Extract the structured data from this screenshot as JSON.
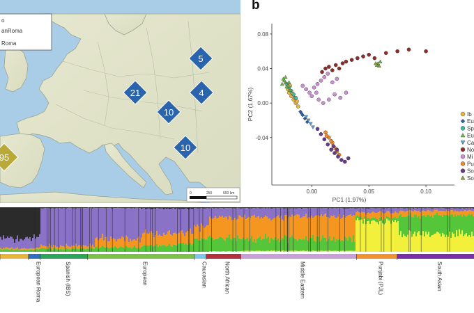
{
  "panel_b_label": "b",
  "map": {
    "legend": {
      "items": [
        "o",
        "anRoma",
        "Roma"
      ]
    },
    "markers": [
      {
        "label": "5",
        "color": "#2a64ad"
      },
      {
        "label": "21",
        "color": "#2a64ad"
      },
      {
        "label": "4",
        "color": "#2a64ad"
      },
      {
        "label": "10",
        "color": "#2a64ad"
      },
      {
        "label": "10",
        "color": "#2a64ad"
      },
      {
        "label": "95",
        "color": "#b9a938"
      }
    ],
    "scale": {
      "labels": [
        "0",
        "250",
        "500 km"
      ]
    }
  },
  "chart_data": {
    "type": "scatter",
    "xlabel": "PC1 (1.97%)",
    "ylabel": "PC2 (1.67%)",
    "xlim": [
      -0.035,
      0.125
    ],
    "ylim": [
      -0.095,
      0.092
    ],
    "xticks": [
      "0.00",
      "0.05",
      "0.10"
    ],
    "xtick_values": [
      0.0,
      0.05,
      0.1
    ],
    "yticks": [
      "0.08",
      "0.04",
      "0.00",
      "-0.04"
    ],
    "ytick_values": [
      0.08,
      0.04,
      0.0,
      -0.04
    ],
    "grid": false,
    "legend_position": "right (cropped)",
    "legend": [
      {
        "label": "Ib",
        "color": "#e8b43a",
        "marker": "circle"
      },
      {
        "label": "Eu",
        "color": "#2f5fa6",
        "marker": "diamond"
      },
      {
        "label": "Sp",
        "color": "#4db3a0",
        "marker": "circle"
      },
      {
        "label": "Eu",
        "color": "#6fb84a",
        "marker": "triangle"
      },
      {
        "label": "Ca",
        "color": "#5aa0d6",
        "marker": "triangle-down"
      },
      {
        "label": "No",
        "color": "#8b2d2a",
        "marker": "circle"
      },
      {
        "label": "Mi",
        "color": "#c98fd0",
        "marker": "circle"
      },
      {
        "label": "Pu",
        "color": "#e88a2a",
        "marker": "circle"
      },
      {
        "label": "So",
        "color": "#6a3a8a",
        "marker": "circle"
      },
      {
        "label": "So",
        "color": "#9a9a3a",
        "marker": "triangle"
      }
    ],
    "series": [
      {
        "name": "Ib",
        "color": "#e8b43a",
        "points": [
          [
            -0.02,
            0.012
          ],
          [
            -0.018,
            0.008
          ],
          [
            -0.016,
            0.004
          ],
          [
            -0.021,
            0.016
          ],
          [
            -0.014,
            0.0
          ],
          [
            -0.012,
            -0.004
          ],
          [
            -0.019,
            0.02
          ],
          [
            -0.015,
            0.006
          ],
          [
            -0.017,
            0.011
          ],
          [
            -0.013,
            0.002
          ]
        ]
      },
      {
        "name": "Eu",
        "color": "#2f5fa6",
        "points": [
          [
            -0.01,
            -0.01
          ],
          [
            -0.008,
            -0.014
          ],
          [
            -0.006,
            -0.018
          ],
          [
            -0.004,
            -0.022
          ],
          [
            -0.009,
            -0.012
          ]
        ]
      },
      {
        "name": "Sp",
        "color": "#4db3a0",
        "points": [
          [
            -0.022,
            0.022
          ],
          [
            -0.02,
            0.018
          ],
          [
            -0.018,
            0.014
          ],
          [
            -0.016,
            0.01
          ],
          [
            -0.014,
            0.006
          ]
        ]
      },
      {
        "name": "Eu",
        "color": "#6fb84a",
        "points": [
          [
            -0.025,
            0.028
          ],
          [
            -0.023,
            0.024
          ],
          [
            -0.021,
            0.02
          ],
          [
            -0.024,
            0.026
          ],
          [
            -0.022,
            0.019
          ],
          [
            -0.019,
            0.015
          ],
          [
            -0.026,
            0.022
          ],
          [
            -0.02,
            0.024
          ],
          [
            -0.023,
            0.03
          ],
          [
            0.058,
            0.046
          ],
          [
            0.06,
            0.048
          ],
          [
            0.057,
            0.044
          ]
        ]
      },
      {
        "name": "Ca",
        "color": "#5aa0d6",
        "points": [
          [
            -0.003,
            -0.02
          ],
          [
            -0.001,
            -0.024
          ],
          [
            0.001,
            -0.028
          ],
          [
            -0.005,
            -0.016
          ]
        ]
      },
      {
        "name": "No",
        "color": "#8b2d2a",
        "points": [
          [
            0.012,
            0.04
          ],
          [
            0.015,
            0.042
          ],
          [
            0.018,
            0.038
          ],
          [
            0.021,
            0.044
          ],
          [
            0.024,
            0.04
          ],
          [
            0.009,
            0.036
          ],
          [
            0.027,
            0.046
          ],
          [
            0.03,
            0.048
          ],
          [
            0.035,
            0.05
          ],
          [
            0.04,
            0.052
          ],
          [
            0.045,
            0.054
          ],
          [
            0.05,
            0.056
          ],
          [
            0.055,
            0.052
          ],
          [
            0.065,
            0.058
          ],
          [
            0.075,
            0.06
          ],
          [
            0.085,
            0.062
          ],
          [
            0.1,
            0.06
          ]
        ]
      },
      {
        "name": "Mi",
        "color": "#c98fd0",
        "points": [
          [
            -0.008,
            0.02
          ],
          [
            -0.005,
            0.016
          ],
          [
            -0.002,
            0.012
          ],
          [
            0.002,
            0.018
          ],
          [
            0.005,
            0.022
          ],
          [
            0.008,
            0.026
          ],
          [
            0.011,
            0.03
          ],
          [
            0.014,
            0.034
          ],
          [
            0.004,
            0.012
          ],
          [
            0.0,
            0.008
          ],
          [
            0.006,
            0.004
          ],
          [
            0.01,
            0.0
          ],
          [
            0.015,
            0.004
          ],
          [
            0.02,
            0.01
          ],
          [
            0.025,
            0.006
          ],
          [
            0.03,
            0.012
          ],
          [
            0.018,
            0.024
          ],
          [
            0.022,
            0.028
          ]
        ]
      },
      {
        "name": "Pu",
        "color": "#e88a2a",
        "points": [
          [
            0.012,
            -0.034
          ],
          [
            0.015,
            -0.04
          ],
          [
            0.018,
            -0.046
          ],
          [
            0.02,
            -0.052
          ],
          [
            0.022,
            -0.056
          ],
          [
            0.024,
            -0.06
          ],
          [
            0.017,
            -0.044
          ],
          [
            0.013,
            -0.038
          ]
        ]
      },
      {
        "name": "So",
        "color": "#6a3a8a",
        "points": [
          [
            0.005,
            -0.03
          ],
          [
            0.008,
            -0.036
          ],
          [
            0.011,
            -0.042
          ],
          [
            0.014,
            -0.048
          ],
          [
            0.017,
            -0.054
          ],
          [
            0.02,
            -0.058
          ],
          [
            0.023,
            -0.062
          ],
          [
            0.026,
            -0.066
          ],
          [
            0.029,
            -0.068
          ],
          [
            0.032,
            -0.064
          ],
          [
            0.019,
            -0.05
          ],
          [
            0.022,
            -0.054
          ]
        ]
      },
      {
        "name": "So",
        "color": "#9a9a3a",
        "points": [
          [
            0.056,
            0.046
          ],
          [
            0.059,
            0.043
          ]
        ]
      }
    ]
  },
  "admixture": {
    "populations": [
      {
        "label": "",
        "color": "#e8b43a",
        "start": 0.0,
        "end": 0.06
      },
      {
        "label": "European Roma",
        "color": "#2f6fbd",
        "start": 0.06,
        "end": 0.085
      },
      {
        "label": "Spanish (IBS)",
        "color": "#2ea35a",
        "start": 0.085,
        "end": 0.185
      },
      {
        "label": "European",
        "color": "#7cc24a",
        "start": 0.185,
        "end": 0.41
      },
      {
        "label": "Caucasian",
        "color": "#7dc8e8",
        "start": 0.41,
        "end": 0.435
      },
      {
        "label": "North African",
        "color": "#b3313a",
        "start": 0.435,
        "end": 0.508
      },
      {
        "label": "Middle Eastern",
        "color": "#c8a0d8",
        "start": 0.508,
        "end": 0.752
      },
      {
        "label": "Punjabi (PJL)",
        "color": "#f0922e",
        "start": 0.752,
        "end": 0.838
      },
      {
        "label": "South Asian",
        "color": "#7a2fa6",
        "start": 0.838,
        "end": 1.0
      }
    ],
    "components": [
      {
        "name": "k1",
        "color": "#2b2b2b"
      },
      {
        "name": "k2",
        "color": "#8a72c6"
      },
      {
        "name": "k3",
        "color": "#f4961f"
      },
      {
        "name": "k4",
        "color": "#55c63a"
      },
      {
        "name": "k5",
        "color": "#f2f03a"
      }
    ],
    "blocks": [
      {
        "start": 0.0,
        "end": 0.085,
        "fractions": [
          0.7,
          0.22,
          0.03,
          0.05,
          0.0
        ]
      },
      {
        "start": 0.085,
        "end": 0.2,
        "fractions": [
          0.02,
          0.85,
          0.06,
          0.07,
          0.0
        ]
      },
      {
        "start": 0.2,
        "end": 0.3,
        "fractions": [
          0.02,
          0.7,
          0.18,
          0.1,
          0.0
        ]
      },
      {
        "start": 0.3,
        "end": 0.41,
        "fractions": [
          0.03,
          0.55,
          0.27,
          0.15,
          0.0
        ]
      },
      {
        "start": 0.41,
        "end": 0.44,
        "fractions": [
          0.02,
          0.45,
          0.28,
          0.25,
          0.0
        ]
      },
      {
        "start": 0.44,
        "end": 0.51,
        "fractions": [
          0.02,
          0.22,
          0.45,
          0.3,
          0.01
        ]
      },
      {
        "start": 0.51,
        "end": 0.6,
        "fractions": [
          0.02,
          0.2,
          0.48,
          0.28,
          0.02
        ]
      },
      {
        "start": 0.6,
        "end": 0.75,
        "fractions": [
          0.02,
          0.18,
          0.5,
          0.28,
          0.02
        ]
      },
      {
        "start": 0.75,
        "end": 0.84,
        "fractions": [
          0.02,
          0.1,
          0.12,
          0.08,
          0.68
        ]
      },
      {
        "start": 0.84,
        "end": 1.0,
        "fractions": [
          0.02,
          0.06,
          0.1,
          0.42,
          0.4
        ]
      }
    ]
  }
}
